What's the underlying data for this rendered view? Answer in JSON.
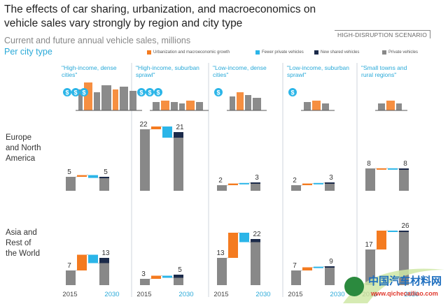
{
  "header": {
    "title": "The effects of car sharing, urbanization, and macroeconomics on vehicle sales vary strongly by region and city type",
    "subtitle": "Current and future annual vehicle sales, millions",
    "subtitle2": "Per city type",
    "scenario": "HIGH-DISRUPTION SCENARIO"
  },
  "legend": [
    {
      "label": "Urbanization and macroeconomic growth",
      "color": "#f47b20"
    },
    {
      "label": "Fewer private vehicles",
      "color": "#2bb5e8"
    },
    {
      "label": "New shared vehicles",
      "color": "#1b2a4a"
    },
    {
      "label": "Private vehicles",
      "color": "#888888"
    }
  ],
  "regions": [
    "Europe\nand North\nAmerica",
    "Asia and\nRest of\nthe World"
  ],
  "watermark": {
    "text_cn": "中国汽车材料网",
    "url": "www.qichecailiao.com"
  },
  "chart_data": {
    "type": "bar",
    "subtype": "waterfall",
    "colors": {
      "growth": "#f47b20",
      "fewer": "#2bb5e8",
      "shared": "#1b2a4a",
      "private": "#888888"
    },
    "x_labels": [
      "2015",
      "2030"
    ],
    "city_types": [
      "\"High-income, dense cities\"",
      "\"High-income, suburban sprawl\"",
      "\"Low-income, dense cities\"",
      "\"Low-income, suburban sprawl\"",
      "\"Small towns and rural regions\""
    ],
    "rows": [
      {
        "region": "Europe and North America",
        "panels": [
          {
            "start": 5,
            "growth": 0.6,
            "fewer": -1.0,
            "shared": 0.4,
            "end": 5
          },
          {
            "start": 22,
            "growth": 1.0,
            "fewer": -4.0,
            "shared": 2.0,
            "end": 21
          },
          {
            "start": 2,
            "growth": 0.6,
            "fewer": 0.2,
            "shared": 0.2,
            "end": 3
          },
          {
            "start": 2,
            "growth": 0.6,
            "fewer": 0.2,
            "shared": 0.2,
            "end": 3
          },
          {
            "start": 8,
            "growth": 0.05,
            "fewer": -0.15,
            "shared": 0.1,
            "end": 8
          }
        ]
      },
      {
        "region": "Asia and Rest of the World",
        "panels": [
          {
            "start": 7,
            "growth": 7.5,
            "fewer": -4.0,
            "shared": 2.5,
            "end": 13
          },
          {
            "start": 3,
            "growth": 1.5,
            "fewer": -1.0,
            "shared": 1.5,
            "end": 5
          },
          {
            "start": 13,
            "growth": 12.0,
            "fewer": -4.5,
            "shared": 1.5,
            "end": 22
          },
          {
            "start": 7,
            "growth": 1.5,
            "fewer": 0.3,
            "shared": 0.2,
            "end": 9
          },
          {
            "start": 17,
            "growth": 9.0,
            "fewer": -0.5,
            "shared": 0.5,
            "end": 26
          }
        ]
      }
    ]
  }
}
